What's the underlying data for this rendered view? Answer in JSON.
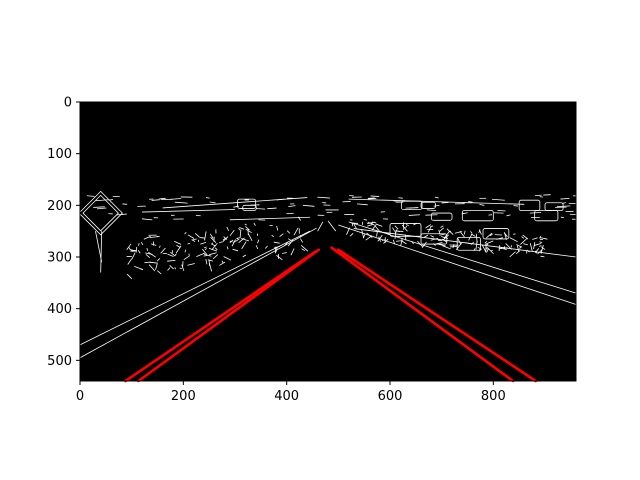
{
  "chart_data": {
    "type": "image",
    "title": "",
    "xlabel": "",
    "ylabel": "",
    "xlim": [
      0,
      960
    ],
    "ylim": [
      540,
      0
    ],
    "x_ticks": [
      0,
      200,
      400,
      600,
      800
    ],
    "y_ticks": [
      0,
      100,
      200,
      300,
      400,
      500
    ],
    "background_color": "#000000",
    "edge_color": "#ffffff",
    "lane_color": "#ff0000",
    "lane_lines": [
      {
        "name": "left-lane-outer",
        "points": [
          [
            88,
            540
          ],
          [
            455,
            290
          ]
        ]
      },
      {
        "name": "left-lane-inner",
        "points": [
          [
            113,
            540
          ],
          [
            462,
            286
          ]
        ]
      },
      {
        "name": "right-lane-inner",
        "points": [
          [
            487,
            282
          ],
          [
            838,
            540
          ]
        ]
      },
      {
        "name": "right-lane-outer",
        "points": [
          [
            500,
            286
          ],
          [
            882,
            540
          ]
        ]
      }
    ],
    "edge_lines": [
      [
        [
          0,
          495
        ],
        [
          458,
          244
        ]
      ],
      [
        [
          0,
          470
        ],
        [
          445,
          250
        ]
      ],
      [
        [
          500,
          238
        ],
        [
          960,
          392
        ]
      ],
      [
        [
          520,
          232
        ],
        [
          960,
          370
        ]
      ],
      [
        [
          530,
          245
        ],
        [
          960,
          300
        ]
      ],
      [
        [
          160,
          205
        ],
        [
          440,
          185
        ]
      ],
      [
        [
          520,
          188
        ],
        [
          860,
          198
        ]
      ],
      [
        [
          290,
          228
        ],
        [
          445,
          223
        ]
      ],
      [
        [
          120,
          213
        ],
        [
          300,
          208
        ]
      ],
      [
        [
          30,
          250
        ],
        [
          42,
          310
        ]
      ],
      [
        [
          42,
          250
        ],
        [
          40,
          330
        ]
      ],
      [
        [
          460,
          250
        ],
        [
          470,
          232
        ]
      ],
      [
        [
          480,
          230
        ],
        [
          495,
          250
        ]
      ]
    ],
    "edge_rects": [
      [
        305,
        188,
        35,
        18
      ],
      [
        315,
        200,
        26,
        10
      ],
      [
        622,
        192,
        40,
        16
      ],
      [
        660,
        194,
        28,
        12
      ],
      [
        740,
        210,
        60,
        20
      ],
      [
        680,
        215,
        40,
        14
      ],
      [
        850,
        190,
        40,
        20
      ],
      [
        900,
        195,
        35,
        15
      ],
      [
        660,
        255,
        50,
        20
      ],
      [
        730,
        262,
        45,
        25
      ],
      [
        600,
        235,
        60,
        25
      ],
      [
        780,
        245,
        50,
        20
      ],
      [
        880,
        210,
        45,
        20
      ]
    ],
    "sign": {
      "center": [
        40,
        215
      ],
      "half_width": 42,
      "half_height": 42
    },
    "clutter_rows": [
      {
        "from": [
          90,
          300
        ],
        "to": [
          440,
          255
        ],
        "band": 70
      },
      {
        "from": [
          520,
          240
        ],
        "to": [
          900,
          280
        ],
        "band": 40
      }
    ]
  }
}
